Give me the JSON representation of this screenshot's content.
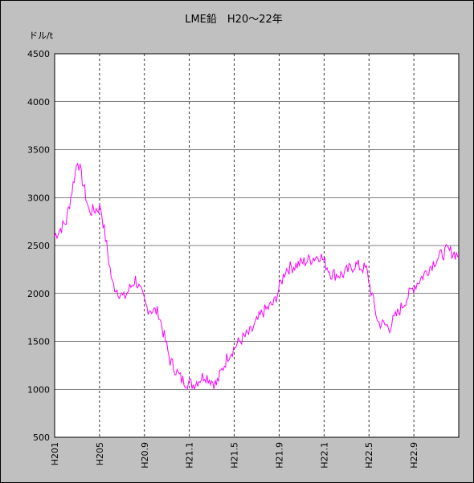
{
  "chart_data": {
    "type": "line",
    "title": "LME鉛　H20～22年",
    "ylabel": "ドル/t",
    "xlabel": "",
    "ylim": [
      500,
      4500
    ],
    "yticks": [
      500,
      1000,
      1500,
      2000,
      2500,
      3000,
      3500,
      4000,
      4500
    ],
    "x_tick_labels": [
      "H201",
      "H205",
      "H20.9",
      "H21.1",
      "H21.5",
      "H21.9",
      "H22.1",
      "H22.5",
      "H22.9"
    ],
    "x_range_months": [
      "2008-01",
      "2010-12"
    ],
    "grid": true,
    "line_color": "#ff00ff",
    "series": [
      {
        "x": [
          "2008-01",
          "2008-02",
          "2008-03",
          "2008-04",
          "2008-05",
          "2008-06",
          "2008-07",
          "2008-08",
          "2008-09",
          "2008-10",
          "2008-11",
          "2008-12",
          "2009-01",
          "2009-02",
          "2009-03",
          "2009-04",
          "2009-05",
          "2009-06",
          "2009-07",
          "2009-08",
          "2009-09",
          "2009-10",
          "2009-11",
          "2009-12",
          "2010-01",
          "2010-02",
          "2010-03",
          "2010-04",
          "2010-05",
          "2010-06",
          "2010-07",
          "2010-08",
          "2010-09",
          "2010-10",
          "2010-11",
          "2010-12"
        ],
        "values": [
          2600,
          2750,
          3400,
          2850,
          2900,
          2100,
          1950,
          2150,
          1850,
          1800,
          1300,
          1100,
          1050,
          1150,
          1050,
          1350,
          1500,
          1600,
          1800,
          1900,
          2250,
          2300,
          2350,
          2400,
          2200,
          2200,
          2300,
          2250,
          1700,
          1650,
          1850,
          2050,
          2200,
          2350,
          2450,
          2400
        ]
      }
    ]
  }
}
